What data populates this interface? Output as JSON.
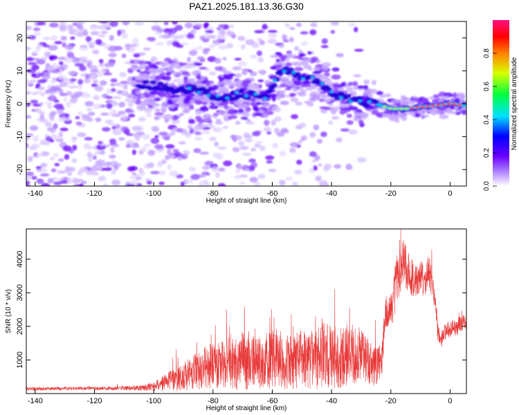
{
  "title": "PAZ1.2025.181.13.36.G30",
  "colors": {
    "snr_line": "#e83a3a",
    "spectrogram_base": "#a276ff"
  },
  "chart_data": [
    {
      "type": "heatmap",
      "xlabel": "Height of straight line (km)",
      "ylabel": "Frequency (Hz)",
      "xlim": [
        -143,
        5.5
      ],
      "ylim": [
        -25,
        25
      ],
      "xticks": [
        -140,
        -120,
        -100,
        -80,
        -60,
        -40,
        -20,
        0
      ],
      "yticks": [
        -20,
        -10,
        0,
        10,
        20
      ],
      "grid": false,
      "colorbar": {
        "label": "Normalized spectral amplitude",
        "range": [
          0,
          1
        ],
        "ticks": [
          "0.0",
          "0.2",
          "0.4",
          "0.6",
          "0.8"
        ],
        "tick_values": [
          0,
          0.2,
          0.4,
          0.6,
          0.8
        ],
        "colormap": "rainbow (violet-blue-cyan-green-yellow-red-magenta)"
      },
      "ridge": [
        {
          "x": -105,
          "y": 6
        },
        {
          "x": -95,
          "y": 5
        },
        {
          "x": -85,
          "y": 4
        },
        {
          "x": -78,
          "y": 2
        },
        {
          "x": -70,
          "y": 3
        },
        {
          "x": -62,
          "y": 2
        },
        {
          "x": -57,
          "y": 10
        },
        {
          "x": -52,
          "y": 9
        },
        {
          "x": -45,
          "y": 7
        },
        {
          "x": -40,
          "y": 3
        },
        {
          "x": -33,
          "y": 1
        },
        {
          "x": -25,
          "y": 0
        },
        {
          "x": -20,
          "y": -1.5
        },
        {
          "x": -15,
          "y": -1.5
        },
        {
          "x": -10,
          "y": -1
        },
        {
          "x": -5,
          "y": -0.5
        },
        {
          "x": 0,
          "y": 0
        },
        {
          "x": 5,
          "y": -0.5
        }
      ]
    },
    {
      "type": "line",
      "xlabel": "Height of straight line (km)",
      "ylabel": "SNR (10 * v/v)",
      "xlim": [
        -143,
        5.5
      ],
      "ylim": [
        0,
        4900
      ],
      "xticks": [
        -140,
        -120,
        -100,
        -80,
        -60,
        -40,
        -20,
        0
      ],
      "yticks": [
        1000,
        2000,
        3000,
        4000
      ],
      "grid": false,
      "series": [
        {
          "color": "#e83a3a",
          "x": [
            -143,
            -140,
            -130,
            -120,
            -110,
            -105,
            -100,
            -97,
            -94,
            -90,
            -86,
            -82,
            -78,
            -74,
            -70,
            -66,
            -62,
            -58,
            -54,
            -50,
            -46,
            -42,
            -38,
            -34,
            -30,
            -26,
            -23,
            -22,
            -21,
            -20,
            -19,
            -18,
            -17,
            -16,
            -15,
            -14,
            -13,
            -12,
            -11,
            -10,
            -9,
            -8,
            -7,
            -6,
            -5,
            -4,
            -3,
            -2,
            -1,
            0,
            1,
            2,
            3,
            4,
            5.5
          ],
          "y": [
            150,
            140,
            150,
            155,
            160,
            170,
            200,
            320,
            400,
            500,
            650,
            800,
            850,
            900,
            950,
            900,
            1000,
            1050,
            900,
            1000,
            1000,
            1150,
            1050,
            1100,
            1150,
            800,
            950,
            2300,
            2400,
            2500,
            2800,
            3600,
            3700,
            3900,
            3800,
            3600,
            3500,
            3400,
            3300,
            3500,
            3300,
            3400,
            3600,
            3200,
            2800,
            1700,
            1600,
            1800,
            1900,
            1900,
            2000,
            1900,
            2050,
            2100,
            2150
          ],
          "amplitude": [
            50,
            50,
            50,
            50,
            60,
            80,
            120,
            220,
            300,
            450,
            550,
            650,
            700,
            800,
            850,
            800,
            850,
            900,
            800,
            900,
            850,
            1050,
            900,
            850,
            850,
            600,
            550,
            350,
            400,
            500,
            700,
            900,
            900,
            800,
            700,
            600,
            600,
            500,
            500,
            600,
            500,
            500,
            600,
            400,
            300,
            300,
            250,
            250,
            250,
            250,
            250,
            250,
            250,
            250,
            250
          ]
        }
      ]
    }
  ]
}
